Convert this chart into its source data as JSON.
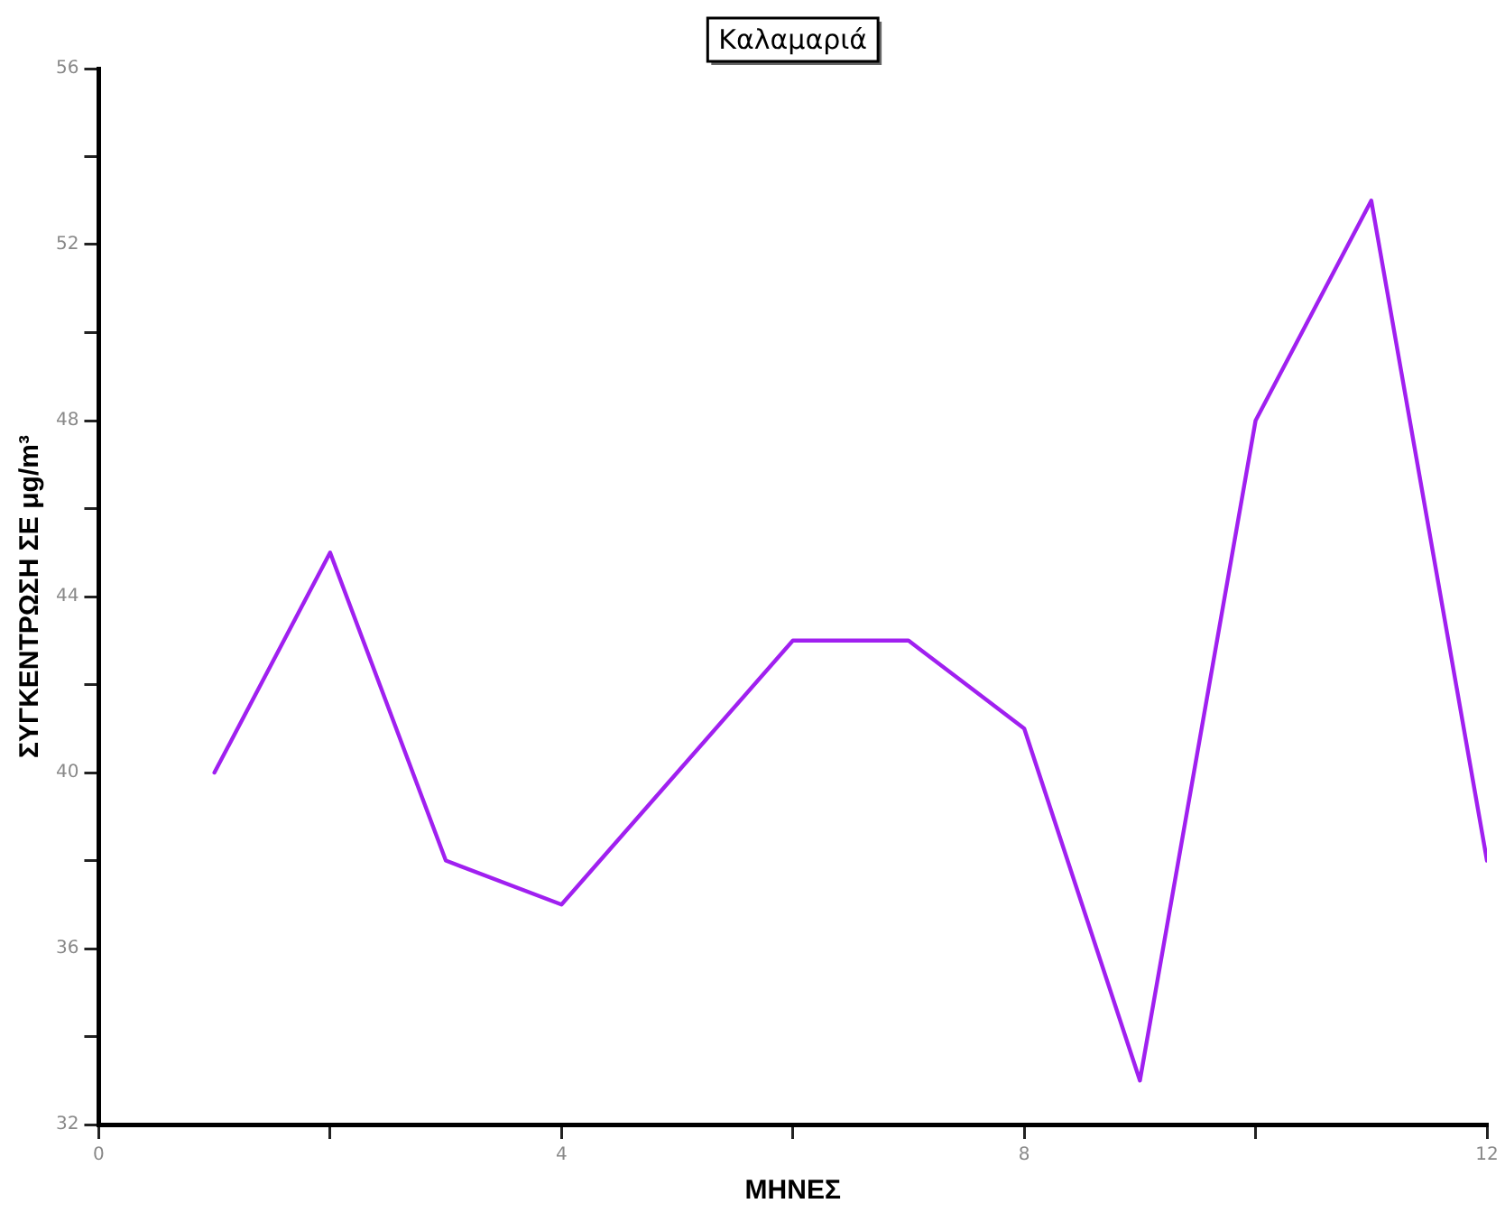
{
  "chart_data": {
    "type": "line",
    "title": "Καλαμαριά",
    "xlabel": "ΜΗΝΕΣ",
    "ylabel": "ΣΥΓΚΕΝΤΡΩΣΗ ΣΕ μg/m³",
    "x": [
      1,
      2,
      3,
      4,
      5,
      6,
      7,
      8,
      9,
      10,
      11,
      12
    ],
    "series": [
      {
        "color": "#a020f0",
        "values": [
          40,
          45,
          38,
          37,
          40,
          43,
          43,
          41,
          33,
          48,
          53,
          38
        ]
      }
    ],
    "xlim": [
      0,
      12
    ],
    "xticks": [
      0,
      {
        "value": 2,
        "label": null
      },
      4,
      {
        "value": 6,
        "label": null
      },
      8,
      {
        "value": 10,
        "label": null
      },
      12
    ],
    "ylim": [
      32,
      56
    ],
    "yticks": [
      32,
      {
        "value": 34,
        "label": null
      },
      36,
      {
        "value": 38,
        "label": null
      },
      40,
      {
        "value": 42,
        "label": null
      },
      44,
      {
        "value": 46,
        "label": null
      },
      48,
      {
        "value": 50,
        "label": null
      },
      52,
      {
        "value": 54,
        "label": null
      },
      56
    ],
    "grid": false,
    "legend": false,
    "marker": "none",
    "line_style": "solid"
  }
}
